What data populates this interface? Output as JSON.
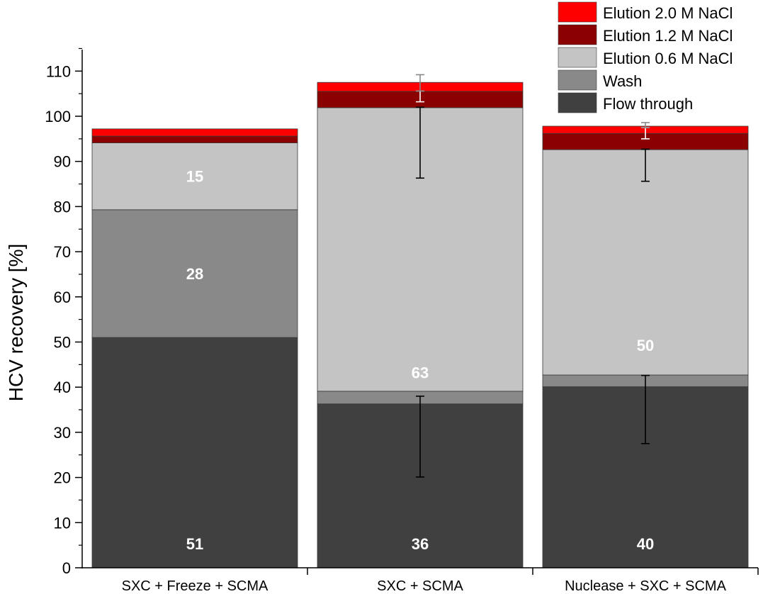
{
  "chart_data": {
    "type": "bar",
    "stacked": true,
    "title": "",
    "xlabel": "",
    "ylabel": "HCV recovery [%]",
    "ylim": [
      0,
      115
    ],
    "yticks": [
      0,
      10,
      20,
      30,
      40,
      50,
      60,
      70,
      80,
      90,
      100,
      110
    ],
    "grid": false,
    "legend": "top-right",
    "categories": [
      "SXC + Freeze + SCMA",
      "SXC + SCMA",
      "Nuclease + SXC + SCMA"
    ],
    "series": [
      {
        "name": "Flow through",
        "color": "#404040",
        "values": [
          51,
          36.3,
          40.1
        ],
        "labels": [
          "51",
          "36",
          "40"
        ]
      },
      {
        "name": "Wash",
        "color": "#898989",
        "values": [
          28.3,
          2.8,
          2.6
        ],
        "labels": [
          "28",
          "",
          ""
        ]
      },
      {
        "name": "Elution 0.6 M NaCl",
        "color": "#c4c4c4",
        "values": [
          14.8,
          62.8,
          49.9
        ],
        "labels": [
          "15",
          "63",
          "50"
        ]
      },
      {
        "name": "Elution 1.2 M NaCl",
        "color": "#8b0000",
        "values": [
          1.5,
          3.6,
          3.6
        ],
        "labels": [
          "",
          "",
          ""
        ]
      },
      {
        "name": "Elution 2.0 M NaCl",
        "color": "#ff0000",
        "values": [
          1.6,
          2.0,
          1.6
        ],
        "labels": [
          "",
          "",
          ""
        ]
      }
    ],
    "error_bars": [
      {
        "category": "SXC + SCMA",
        "series": "Flow through",
        "low": 20.1,
        "high": 38.0,
        "color": "#000000"
      },
      {
        "category": "SXC + SCMA",
        "series": "Elution 0.6 M NaCl",
        "low": 86.3,
        "high": 102.0,
        "color": "#000000"
      },
      {
        "category": "SXC + SCMA",
        "series": "Elution 1.2 M NaCl",
        "low": 103.2,
        "high": 105.6,
        "color": "#ffffff"
      },
      {
        "category": "SXC + SCMA",
        "series": "Elution 2.0 M NaCl",
        "low": 105.6,
        "high": 109.2,
        "color": "#888888"
      },
      {
        "category": "Nuclease + SXC + SCMA",
        "series": "Flow through",
        "low": 27.5,
        "high": 42.6,
        "color": "#000000"
      },
      {
        "category": "Nuclease + SXC + SCMA",
        "series": "Elution 0.6 M NaCl",
        "low": 85.6,
        "high": 92.7,
        "color": "#000000"
      },
      {
        "category": "Nuclease + SXC + SCMA",
        "series": "Elution 1.2 M NaCl",
        "low": 95.0,
        "high": 97.5,
        "color": "#ffffff"
      },
      {
        "category": "Nuclease + SXC + SCMA",
        "series": "Elution 2.0 M NaCl",
        "low": 97.5,
        "high": 98.6,
        "color": "#888888"
      }
    ],
    "legend_order": [
      "Elution 2.0 M NaCl",
      "Elution 1.2 M NaCl",
      "Elution 0.6 M NaCl",
      "Wash",
      "Flow through"
    ]
  }
}
